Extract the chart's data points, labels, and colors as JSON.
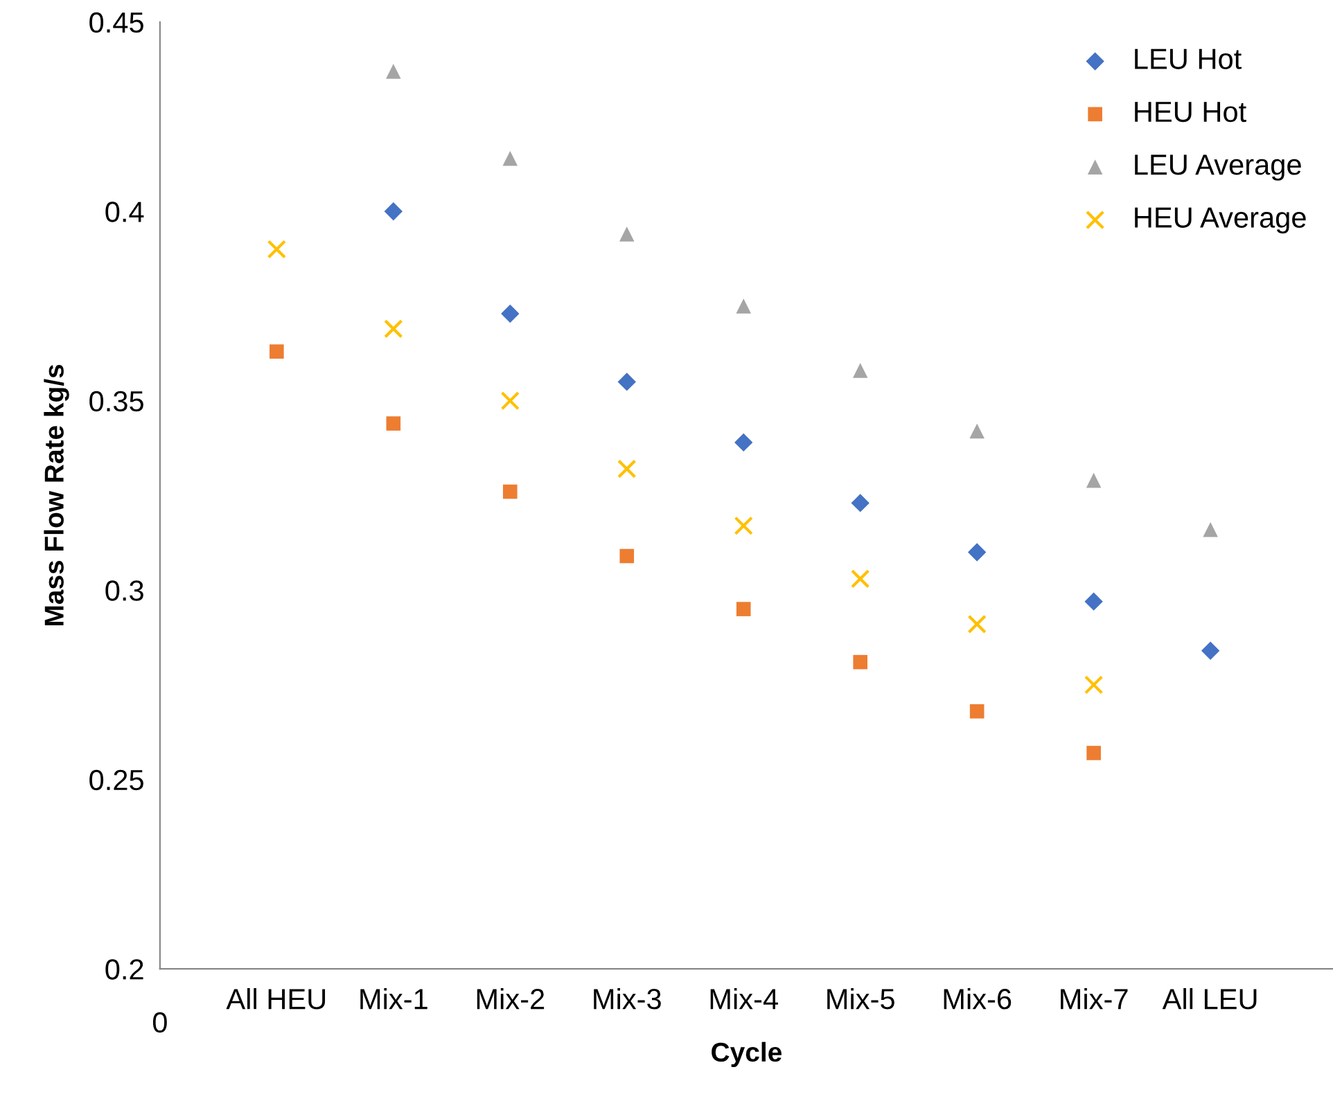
{
  "chart_data": {
    "type": "scatter",
    "xlabel": "Cycle",
    "ylabel": "Mass Flow Rate kg/s",
    "categories": [
      "All HEU",
      "Mix-1",
      "Mix-2",
      "Mix-3",
      "Mix-4",
      "Mix-5",
      "Mix-6",
      "Mix-7",
      "All LEU"
    ],
    "annotations": [
      "0"
    ],
    "ylim": [
      0.2,
      0.45
    ],
    "yticks": [
      0.2,
      0.25,
      0.3,
      0.35,
      0.4,
      0.45
    ],
    "grid": false,
    "legend": "top right",
    "series": [
      {
        "name": "LEU Hot",
        "color": "#4472c4",
        "marker": "diamond",
        "values": [
          null,
          0.4,
          0.373,
          0.355,
          0.339,
          0.323,
          0.31,
          0.297,
          0.284
        ]
      },
      {
        "name": "HEU Hot",
        "color": "#ed7d31",
        "marker": "square",
        "values": [
          0.363,
          0.344,
          0.326,
          0.309,
          0.295,
          0.281,
          0.268,
          0.257,
          null
        ]
      },
      {
        "name": "LEU Average",
        "color": "#a5a5a5",
        "marker": "triangle",
        "values": [
          null,
          0.437,
          0.414,
          0.394,
          0.375,
          0.358,
          0.342,
          0.329,
          0.316
        ]
      },
      {
        "name": "HEU Average",
        "color": "#ffc000",
        "marker": "cross",
        "values": [
          0.39,
          0.369,
          0.35,
          0.332,
          0.317,
          0.303,
          0.291,
          0.275,
          null
        ]
      }
    ]
  }
}
